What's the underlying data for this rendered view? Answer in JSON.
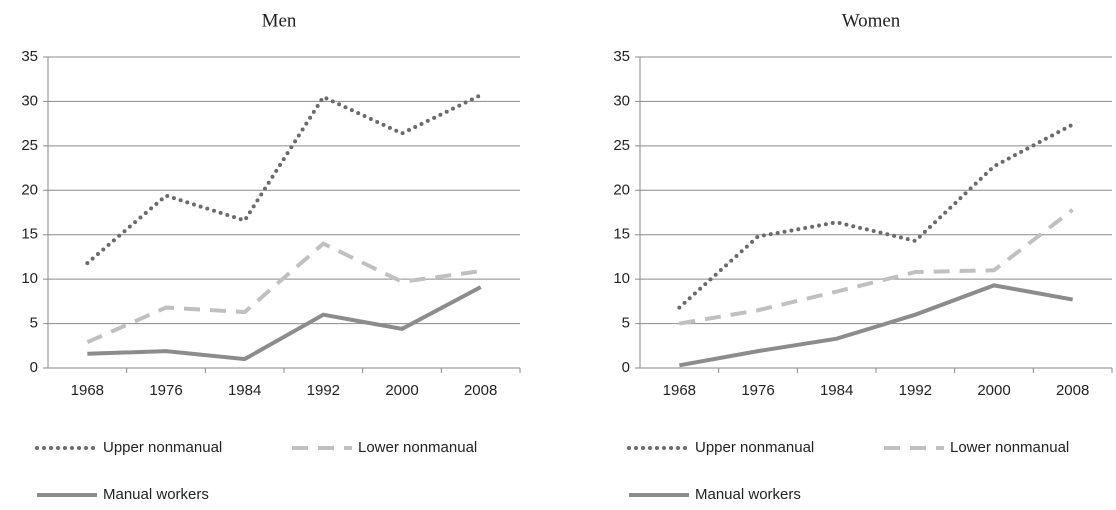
{
  "chart_data": [
    {
      "type": "line",
      "title": "Men",
      "categories": [
        "1968",
        "1976",
        "1984",
        "1992",
        "2000",
        "2008"
      ],
      "ylim": [
        0,
        35
      ],
      "yticks": [
        0,
        5,
        10,
        15,
        20,
        25,
        30,
        35
      ],
      "grid": true,
      "series": [
        {
          "name": "Upper nonmanual",
          "color": "#6b6b6b",
          "style": "dotted",
          "values": [
            11.8,
            19.4,
            16.6,
            30.5,
            26.4,
            30.7
          ]
        },
        {
          "name": "Lower nonmanual",
          "color": "#c0c0c0",
          "style": "dashed",
          "values": [
            2.9,
            6.8,
            6.3,
            14.0,
            9.7,
            10.9
          ]
        },
        {
          "name": "Manual workers",
          "color": "#8c8c8c",
          "style": "solid",
          "values": [
            1.6,
            1.9,
            1.0,
            6.0,
            4.4,
            9.1
          ]
        }
      ]
    },
    {
      "type": "line",
      "title": "Women",
      "categories": [
        "1968",
        "1976",
        "1984",
        "1992",
        "2000",
        "2008"
      ],
      "ylim": [
        0,
        35
      ],
      "yticks": [
        0,
        5,
        10,
        15,
        20,
        25,
        30,
        35
      ],
      "grid": true,
      "series": [
        {
          "name": "Upper nonmanual",
          "color": "#6b6b6b",
          "style": "dotted",
          "values": [
            6.8,
            14.8,
            16.4,
            14.3,
            22.7,
            27.4
          ]
        },
        {
          "name": "Lower nonmanual",
          "color": "#c0c0c0",
          "style": "dashed",
          "values": [
            5.0,
            6.5,
            8.6,
            10.8,
            11.0,
            17.8
          ]
        },
        {
          "name": "Manual workers",
          "color": "#8c8c8c",
          "style": "solid",
          "values": [
            0.3,
            1.9,
            3.3,
            6.0,
            9.3,
            7.7
          ]
        }
      ]
    }
  ]
}
